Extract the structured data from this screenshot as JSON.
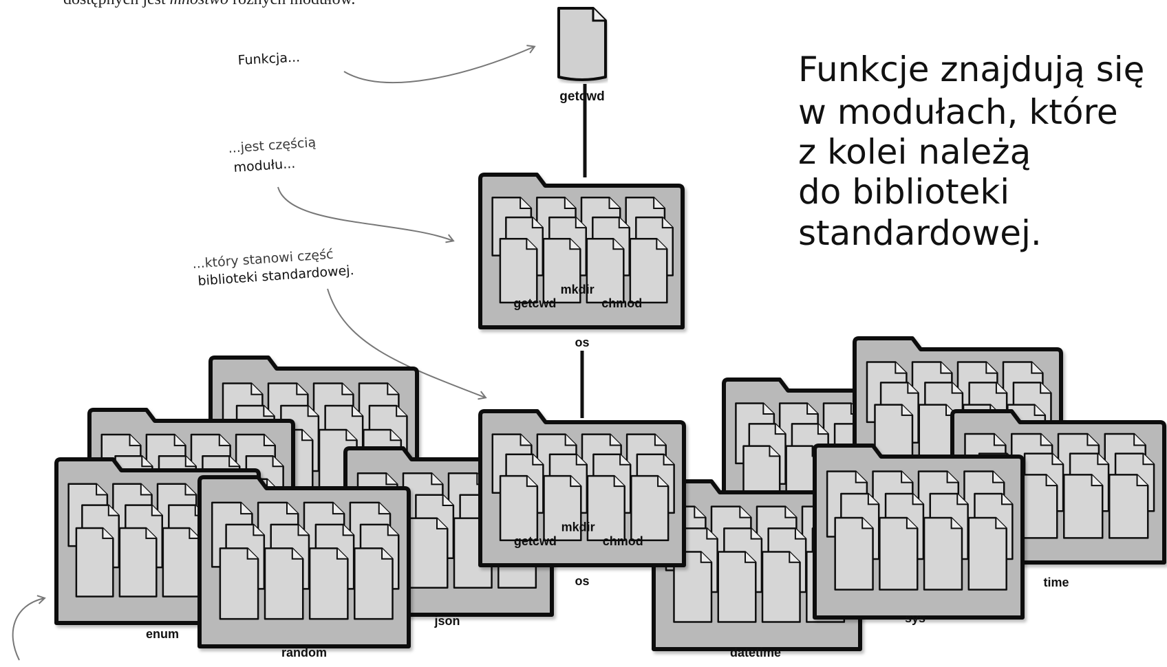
{
  "top_text": {
    "before": "dostępnych jest ",
    "emph": "mnóstwo",
    "after": " różnych modułów."
  },
  "annotations": {
    "function": "Funkcja...",
    "module_line1": "...jest częścią",
    "module_line2": "modułu...",
    "library_line1": "...który stanowi część",
    "library_line2": "biblioteki standardowej."
  },
  "headline": [
    "Funkcje znajdują się",
    "w modułach, które",
    "z kolei należą",
    "do biblioteki",
    "standardowej."
  ],
  "function_label": "getcwd",
  "os_module": {
    "name": "os",
    "functions": [
      "getcwd",
      "mkdir",
      "chmod"
    ]
  },
  "library_modules": [
    "enum",
    "random",
    "json",
    "os",
    "datetime",
    "sys",
    "time"
  ],
  "colors": {
    "folder_fill": "#b9b9b9",
    "outline": "#111111",
    "arrow": "#777777",
    "page_fill": "#d6d6d6"
  }
}
